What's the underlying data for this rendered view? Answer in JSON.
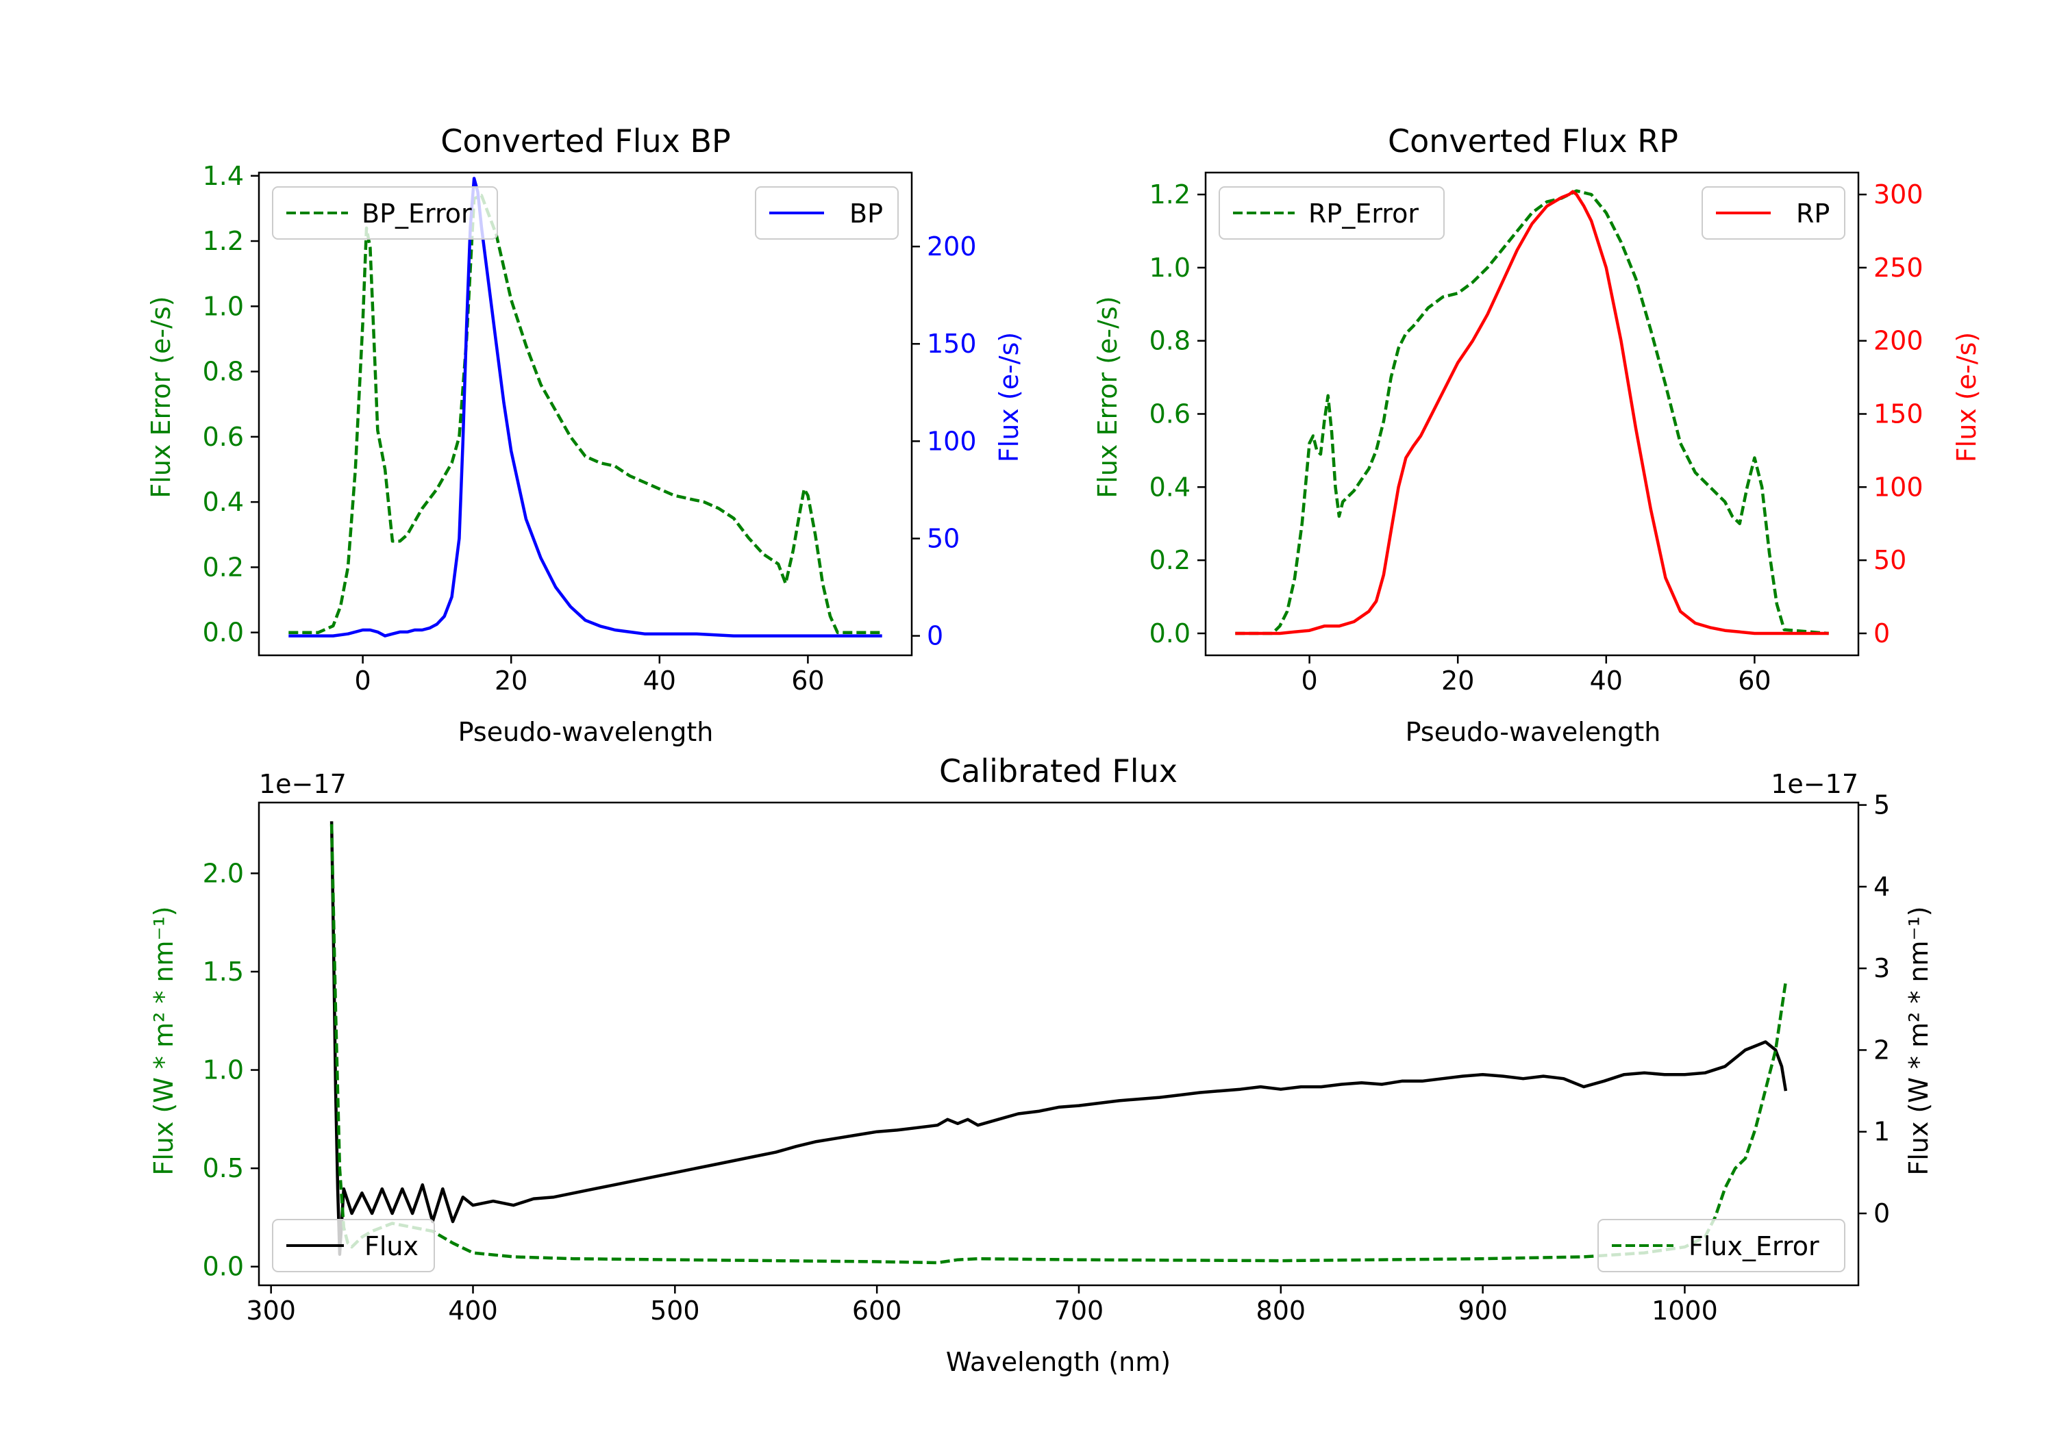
{
  "chart_data": [
    {
      "type": "line",
      "title": "Converted Flux BP",
      "xlabel": "Pseudo-wavelength",
      "xlim": [
        -14,
        74
      ],
      "xticks": [
        0,
        20,
        40,
        60
      ],
      "left_axis": {
        "label": "Flux Error (e-/s)",
        "color": "#008000",
        "ylim": [
          -0.07,
          1.41
        ],
        "ticks": [
          "0.0",
          "0.2",
          "0.4",
          "0.6",
          "0.8",
          "1.0",
          "1.2",
          "1.4"
        ]
      },
      "right_axis": {
        "label": "Flux (e-/s)",
        "color": "#0000ff",
        "ylim": [
          -10,
          238
        ],
        "ticks": [
          "0",
          "50",
          "100",
          "150",
          "200"
        ]
      },
      "series": [
        {
          "name": "BP_Error",
          "axis": "left",
          "color": "#008000",
          "style": "dashed",
          "legend": "top-left",
          "x": [
            -10,
            -6,
            -4,
            -3,
            -2,
            -1,
            0,
            0.5,
            1,
            1.5,
            2,
            3,
            4,
            5,
            6,
            7,
            8,
            10,
            12,
            13,
            14,
            15,
            16,
            17,
            18,
            19,
            20,
            22,
            24,
            26,
            28,
            30,
            32,
            34,
            36,
            38,
            40,
            42,
            44,
            46,
            48,
            50,
            52,
            54,
            56,
            57,
            58,
            59,
            59.5,
            60,
            61,
            62,
            63,
            64,
            65,
            66,
            70
          ],
          "y": [
            0.0,
            0.0,
            0.02,
            0.08,
            0.2,
            0.5,
            0.95,
            1.24,
            1.18,
            0.9,
            0.62,
            0.5,
            0.28,
            0.28,
            0.3,
            0.34,
            0.38,
            0.44,
            0.52,
            0.6,
            0.9,
            1.33,
            1.34,
            1.28,
            1.22,
            1.12,
            1.02,
            0.88,
            0.76,
            0.68,
            0.6,
            0.54,
            0.52,
            0.51,
            0.48,
            0.46,
            0.44,
            0.42,
            0.41,
            0.4,
            0.38,
            0.35,
            0.29,
            0.24,
            0.21,
            0.15,
            0.25,
            0.38,
            0.44,
            0.42,
            0.3,
            0.15,
            0.05,
            0.0,
            0.0,
            0.0,
            0.0
          ]
        },
        {
          "name": "BP",
          "axis": "right",
          "color": "#0000ff",
          "style": "solid",
          "legend": "top-right",
          "x": [
            -10,
            -4,
            -2,
            0,
            1,
            2,
            3,
            4,
            5,
            6,
            7,
            8,
            9,
            10,
            11,
            12,
            13,
            13.5,
            14,
            14.5,
            15,
            15.5,
            16,
            17,
            18,
            19,
            20,
            22,
            24,
            26,
            28,
            30,
            32,
            34,
            36,
            38,
            40,
            45,
            50,
            55,
            60,
            70
          ],
          "y": [
            0,
            0,
            1,
            3,
            3,
            2,
            0,
            1,
            2,
            2,
            3,
            3,
            4,
            6,
            10,
            20,
            50,
            100,
            160,
            210,
            235,
            228,
            210,
            180,
            150,
            120,
            95,
            60,
            40,
            25,
            15,
            8,
            5,
            3,
            2,
            1,
            1,
            1,
            0,
            0,
            0,
            0
          ]
        }
      ]
    },
    {
      "type": "line",
      "title": "Converted Flux RP",
      "xlabel": "Pseudo-wavelength",
      "xlim": [
        -14,
        74
      ],
      "xticks": [
        0,
        20,
        40,
        60
      ],
      "left_axis": {
        "label": "Flux Error (e-/s)",
        "color": "#008000",
        "ylim": [
          -0.06,
          1.26
        ],
        "ticks": [
          "0.0",
          "0.2",
          "0.4",
          "0.6",
          "0.8",
          "1.0",
          "1.2"
        ]
      },
      "right_axis": {
        "label": "Flux (e-/s)",
        "color": "#ff0000",
        "ylim": [
          -15,
          315
        ],
        "ticks": [
          "0",
          "50",
          "100",
          "150",
          "200",
          "250",
          "300"
        ]
      },
      "series": [
        {
          "name": "RP_Error",
          "axis": "left",
          "color": "#008000",
          "style": "dashed",
          "legend": "top-left",
          "x": [
            -10,
            -5,
            -4,
            -3,
            -2,
            -1,
            0,
            0.5,
            1,
            1.5,
            2,
            2.5,
            3,
            3.5,
            4,
            4.5,
            5,
            6,
            7,
            8,
            9,
            10,
            11,
            12,
            13,
            14,
            16,
            18,
            20,
            22,
            24,
            26,
            28,
            30,
            32,
            34,
            36,
            38,
            40,
            42,
            44,
            46,
            48,
            50,
            52,
            54,
            55,
            56,
            57,
            58,
            59,
            60,
            61,
            62,
            63,
            64,
            70
          ],
          "y": [
            0.0,
            0.0,
            0.02,
            0.06,
            0.15,
            0.3,
            0.52,
            0.54,
            0.5,
            0.49,
            0.58,
            0.65,
            0.55,
            0.4,
            0.32,
            0.36,
            0.37,
            0.39,
            0.42,
            0.45,
            0.5,
            0.58,
            0.7,
            0.78,
            0.82,
            0.84,
            0.89,
            0.92,
            0.93,
            0.96,
            1.0,
            1.05,
            1.1,
            1.15,
            1.18,
            1.19,
            1.21,
            1.2,
            1.15,
            1.07,
            0.97,
            0.83,
            0.68,
            0.52,
            0.44,
            0.4,
            0.38,
            0.36,
            0.32,
            0.3,
            0.4,
            0.48,
            0.4,
            0.22,
            0.08,
            0.01,
            0.0
          ]
        },
        {
          "name": "RP",
          "axis": "right",
          "color": "#ff0000",
          "style": "solid",
          "legend": "top-right",
          "x": [
            -10,
            -4,
            -2,
            0,
            2,
            4,
            6,
            8,
            9,
            10,
            11,
            12,
            13,
            14,
            15,
            16,
            18,
            20,
            22,
            24,
            26,
            28,
            30,
            32,
            34,
            35,
            35.5,
            36,
            37,
            38,
            40,
            42,
            44,
            46,
            48,
            50,
            52,
            54,
            56,
            58,
            60,
            62,
            64,
            70
          ],
          "y": [
            0,
            0,
            1,
            2,
            5,
            5,
            8,
            15,
            22,
            40,
            70,
            100,
            120,
            128,
            135,
            145,
            165,
            185,
            200,
            218,
            240,
            262,
            280,
            292,
            298,
            300,
            302,
            300,
            292,
            282,
            250,
            200,
            140,
            85,
            38,
            15,
            7,
            4,
            2,
            1,
            0,
            0,
            0,
            0
          ]
        }
      ]
    },
    {
      "type": "line",
      "title": "Calibrated Flux",
      "xlabel": "Wavelength (nm)",
      "xlim": [
        294,
        1086
      ],
      "xticks": [
        300,
        400,
        500,
        600,
        700,
        800,
        900,
        1000
      ],
      "left_axis": {
        "label": "Flux (W * m² * nm⁻¹)",
        "color": "#008000",
        "ylim": [
          -0.095,
          2.36
        ],
        "ticks": [
          "0.0",
          "0.5",
          "1.0",
          "1.5",
          "2.0"
        ],
        "offset_text": "1e−17"
      },
      "right_axis": {
        "label": "Flux (W * m² * nm⁻¹)",
        "color": "#000000",
        "ylim": [
          -0.88,
          5.03
        ],
        "ticks": [
          "0",
          "1",
          "2",
          "3",
          "4",
          "5"
        ],
        "offset_text": "1e−17"
      },
      "series": [
        {
          "name": "Flux",
          "axis": "right",
          "color": "#000000",
          "style": "solid",
          "legend": "bottom-left",
          "x": [
            330,
            331,
            332,
            333,
            334,
            336,
            340,
            345,
            350,
            355,
            360,
            365,
            370,
            375,
            380,
            385,
            390,
            395,
            400,
            410,
            420,
            430,
            440,
            450,
            460,
            470,
            480,
            490,
            500,
            510,
            520,
            530,
            540,
            550,
            560,
            570,
            580,
            590,
            600,
            610,
            620,
            630,
            635,
            640,
            645,
            650,
            660,
            670,
            680,
            690,
            700,
            710,
            720,
            730,
            740,
            750,
            760,
            770,
            780,
            790,
            800,
            810,
            820,
            830,
            840,
            850,
            860,
            870,
            880,
            890,
            900,
            910,
            920,
            930,
            940,
            950,
            960,
            970,
            980,
            990,
            1000,
            1010,
            1020,
            1030,
            1035,
            1040,
            1045,
            1048,
            1050
          ],
          "y": [
            4.8,
            3.2,
            1.5,
            0.3,
            -0.5,
            0.3,
            0.0,
            0.25,
            0.0,
            0.3,
            0.0,
            0.3,
            0.0,
            0.35,
            -0.1,
            0.3,
            -0.1,
            0.2,
            0.1,
            0.15,
            0.1,
            0.18,
            0.2,
            0.25,
            0.3,
            0.35,
            0.4,
            0.45,
            0.5,
            0.55,
            0.6,
            0.65,
            0.7,
            0.75,
            0.82,
            0.88,
            0.92,
            0.96,
            1.0,
            1.02,
            1.05,
            1.08,
            1.15,
            1.1,
            1.15,
            1.08,
            1.15,
            1.22,
            1.25,
            1.3,
            1.32,
            1.35,
            1.38,
            1.4,
            1.42,
            1.45,
            1.48,
            1.5,
            1.52,
            1.55,
            1.52,
            1.55,
            1.55,
            1.58,
            1.6,
            1.58,
            1.62,
            1.62,
            1.65,
            1.68,
            1.7,
            1.68,
            1.65,
            1.68,
            1.65,
            1.55,
            1.62,
            1.7,
            1.72,
            1.7,
            1.7,
            1.72,
            1.8,
            2.0,
            2.05,
            2.1,
            2.0,
            1.8,
            1.5
          ]
        },
        {
          "name": "Flux_Error",
          "axis": "left",
          "color": "#008000",
          "style": "dashed",
          "legend": "bottom-right",
          "x": [
            330,
            332,
            334,
            336,
            338,
            340,
            345,
            350,
            355,
            360,
            370,
            380,
            390,
            400,
            420,
            450,
            500,
            550,
            600,
            630,
            640,
            650,
            700,
            800,
            900,
            950,
            980,
            1000,
            1010,
            1015,
            1020,
            1025,
            1030,
            1035,
            1040,
            1045,
            1050
          ],
          "y": [
            2.25,
            1.3,
            0.5,
            0.2,
            0.12,
            0.1,
            0.15,
            0.18,
            0.2,
            0.22,
            0.2,
            0.18,
            0.12,
            0.07,
            0.05,
            0.04,
            0.035,
            0.03,
            0.025,
            0.02,
            0.035,
            0.04,
            0.035,
            0.03,
            0.04,
            0.05,
            0.07,
            0.1,
            0.15,
            0.25,
            0.4,
            0.5,
            0.55,
            0.7,
            0.9,
            1.1,
            1.45
          ]
        }
      ]
    }
  ]
}
